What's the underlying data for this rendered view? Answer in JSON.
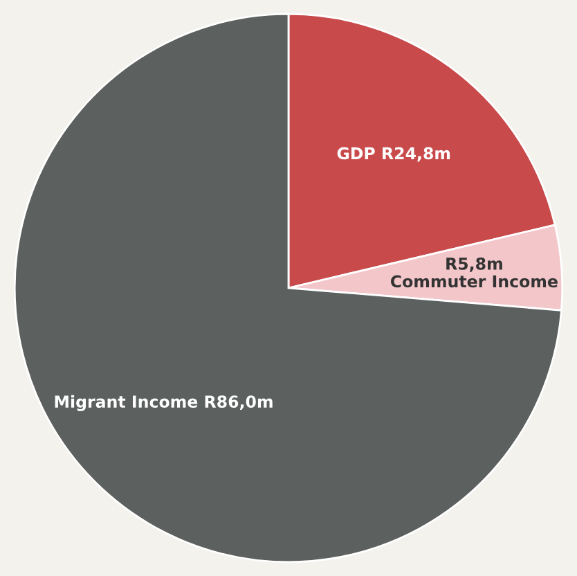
{
  "chart_data": {
    "type": "pie",
    "categories": [
      "GDP",
      "Commuter Income",
      "Migrant Income"
    ],
    "value_labels": [
      "R24,8m",
      "R5,8m",
      "R86,0m"
    ],
    "values": [
      21.3,
      5.0,
      73.7
    ],
    "colors": [
      "#c94a4b",
      "#f3c6ca",
      "#5c6160"
    ]
  }
}
